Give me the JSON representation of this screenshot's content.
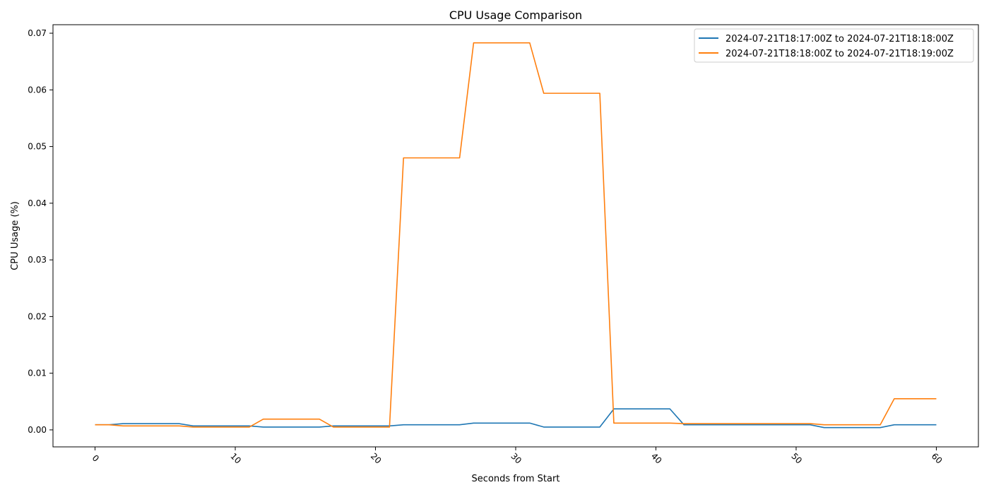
{
  "chart_data": {
    "type": "line",
    "title": "CPU Usage Comparison",
    "xlabel": "Seconds from Start",
    "ylabel": "CPU Usage (%)",
    "xlim": [
      -3,
      63
    ],
    "ylim": [
      -0.003,
      0.0715
    ],
    "x_ticks": [
      0,
      10,
      20,
      30,
      40,
      50,
      60
    ],
    "x_tick_labels": [
      "0",
      "10",
      "20",
      "30",
      "40",
      "50",
      "60"
    ],
    "y_ticks": [
      0.0,
      0.01,
      0.02,
      0.03,
      0.04,
      0.05,
      0.06,
      0.07
    ],
    "y_tick_labels": [
      "0.00",
      "0.01",
      "0.02",
      "0.03",
      "0.04",
      "0.05",
      "0.06",
      "0.07"
    ],
    "x_tick_rotation": "45 degrees",
    "grid": false,
    "legend_position": "top-right",
    "x": [
      0,
      1,
      2,
      3,
      4,
      5,
      6,
      7,
      8,
      9,
      10,
      11,
      12,
      13,
      14,
      15,
      16,
      17,
      18,
      19,
      20,
      21,
      22,
      23,
      24,
      25,
      26,
      27,
      28,
      29,
      30,
      31,
      32,
      33,
      34,
      35,
      36,
      37,
      38,
      39,
      40,
      41,
      42,
      43,
      44,
      45,
      46,
      47,
      48,
      49,
      50,
      51,
      52,
      53,
      54,
      55,
      56,
      57,
      58,
      59,
      60
    ],
    "series": [
      {
        "name": "2024-07-21T18:17:00Z to 2024-07-21T18:18:00Z",
        "color": "#1f77b4",
        "values": [
          0.0009,
          0.0009,
          0.0011,
          0.0011,
          0.0011,
          0.0011,
          0.0011,
          0.0007,
          0.0007,
          0.0007,
          0.0007,
          0.0007,
          0.0005,
          0.0005,
          0.0005,
          0.0005,
          0.0005,
          0.0007,
          0.0007,
          0.0007,
          0.0007,
          0.0007,
          0.0009,
          0.0009,
          0.0009,
          0.0009,
          0.0009,
          0.0012,
          0.0012,
          0.0012,
          0.0012,
          0.0012,
          0.0005,
          0.0005,
          0.0005,
          0.0005,
          0.0005,
          0.0037,
          0.0037,
          0.0037,
          0.0037,
          0.0037,
          0.0009,
          0.0009,
          0.0009,
          0.0009,
          0.0009,
          0.0009,
          0.0009,
          0.0009,
          0.0009,
          0.0009,
          0.0004,
          0.0004,
          0.0004,
          0.0004,
          0.0004,
          0.0009,
          0.0009,
          0.0009,
          0.0009
        ]
      },
      {
        "name": "2024-07-21T18:18:00Z to 2024-07-21T18:19:00Z",
        "color": "#ff7f0e",
        "values": [
          0.0009,
          0.0009,
          0.0007,
          0.0007,
          0.0007,
          0.0007,
          0.0007,
          0.0005,
          0.0005,
          0.0005,
          0.0005,
          0.0005,
          0.0019,
          0.0019,
          0.0019,
          0.0019,
          0.0019,
          0.0005,
          0.0005,
          0.0005,
          0.0005,
          0.0005,
          0.048,
          0.048,
          0.048,
          0.048,
          0.048,
          0.0683,
          0.0683,
          0.0683,
          0.0683,
          0.0683,
          0.0594,
          0.0594,
          0.0594,
          0.0594,
          0.0594,
          0.0012,
          0.0012,
          0.0012,
          0.0012,
          0.0012,
          0.0011,
          0.0011,
          0.0011,
          0.0011,
          0.0011,
          0.0011,
          0.0011,
          0.0011,
          0.0011,
          0.0011,
          0.0009,
          0.0009,
          0.0009,
          0.0009,
          0.0009,
          0.0055,
          0.0055,
          0.0055,
          0.0055
        ]
      }
    ]
  }
}
